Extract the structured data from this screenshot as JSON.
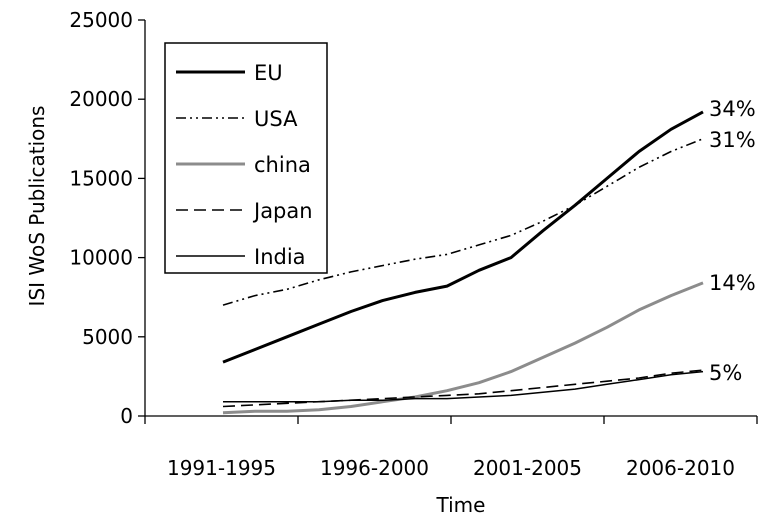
{
  "chart_data": {
    "type": "line",
    "title": "",
    "xlabel": "Time",
    "ylabel": "ISI WoS Publications",
    "ylim": [
      0,
      25000
    ],
    "yticks": [
      0,
      5000,
      10000,
      15000,
      20000,
      25000
    ],
    "categories": [
      "1991-1995",
      "1996-2000",
      "2001-2005",
      "2006-2010"
    ],
    "x": [
      1,
      2,
      3,
      4,
      5,
      6,
      7,
      8,
      9,
      10,
      11,
      12,
      13,
      14,
      15,
      16
    ],
    "series": [
      {
        "name": "EU",
        "color": "#000000",
        "style": "solid-thick",
        "values": [
          3400,
          4200,
          5000,
          5800,
          6600,
          7300,
          7800,
          8200,
          9200,
          10000,
          11700,
          13300,
          15000,
          16700,
          18100,
          19200
        ],
        "end_label": "34%"
      },
      {
        "name": "USA",
        "color": "#000000",
        "style": "dash-dot-dot",
        "values": [
          7000,
          7600,
          8000,
          8600,
          9100,
          9500,
          9900,
          10200,
          10800,
          11400,
          12300,
          13300,
          14500,
          15700,
          16700,
          17500
        ],
        "end_label": "31%"
      },
      {
        "name": "china",
        "color": "#8c8c8c",
        "style": "solid-thick",
        "values": [
          200,
          300,
          300,
          400,
          600,
          900,
          1200,
          1600,
          2100,
          2800,
          3700,
          4600,
          5600,
          6700,
          7600,
          8400
        ],
        "end_label": "14%"
      },
      {
        "name": "Japan",
        "color": "#000000",
        "style": "dashed",
        "values": [
          600,
          700,
          800,
          900,
          1000,
          1100,
          1200,
          1300,
          1400,
          1600,
          1800,
          2000,
          2200,
          2400,
          2700,
          2900
        ],
        "end_label": "5%"
      },
      {
        "name": "India",
        "color": "#000000",
        "style": "solid-thin",
        "values": [
          900,
          900,
          900,
          900,
          1000,
          1000,
          1100,
          1100,
          1200,
          1300,
          1500,
          1700,
          2000,
          2300,
          2600,
          2800
        ],
        "end_label": ""
      }
    ],
    "legend_position": "top-left",
    "grid": false
  }
}
